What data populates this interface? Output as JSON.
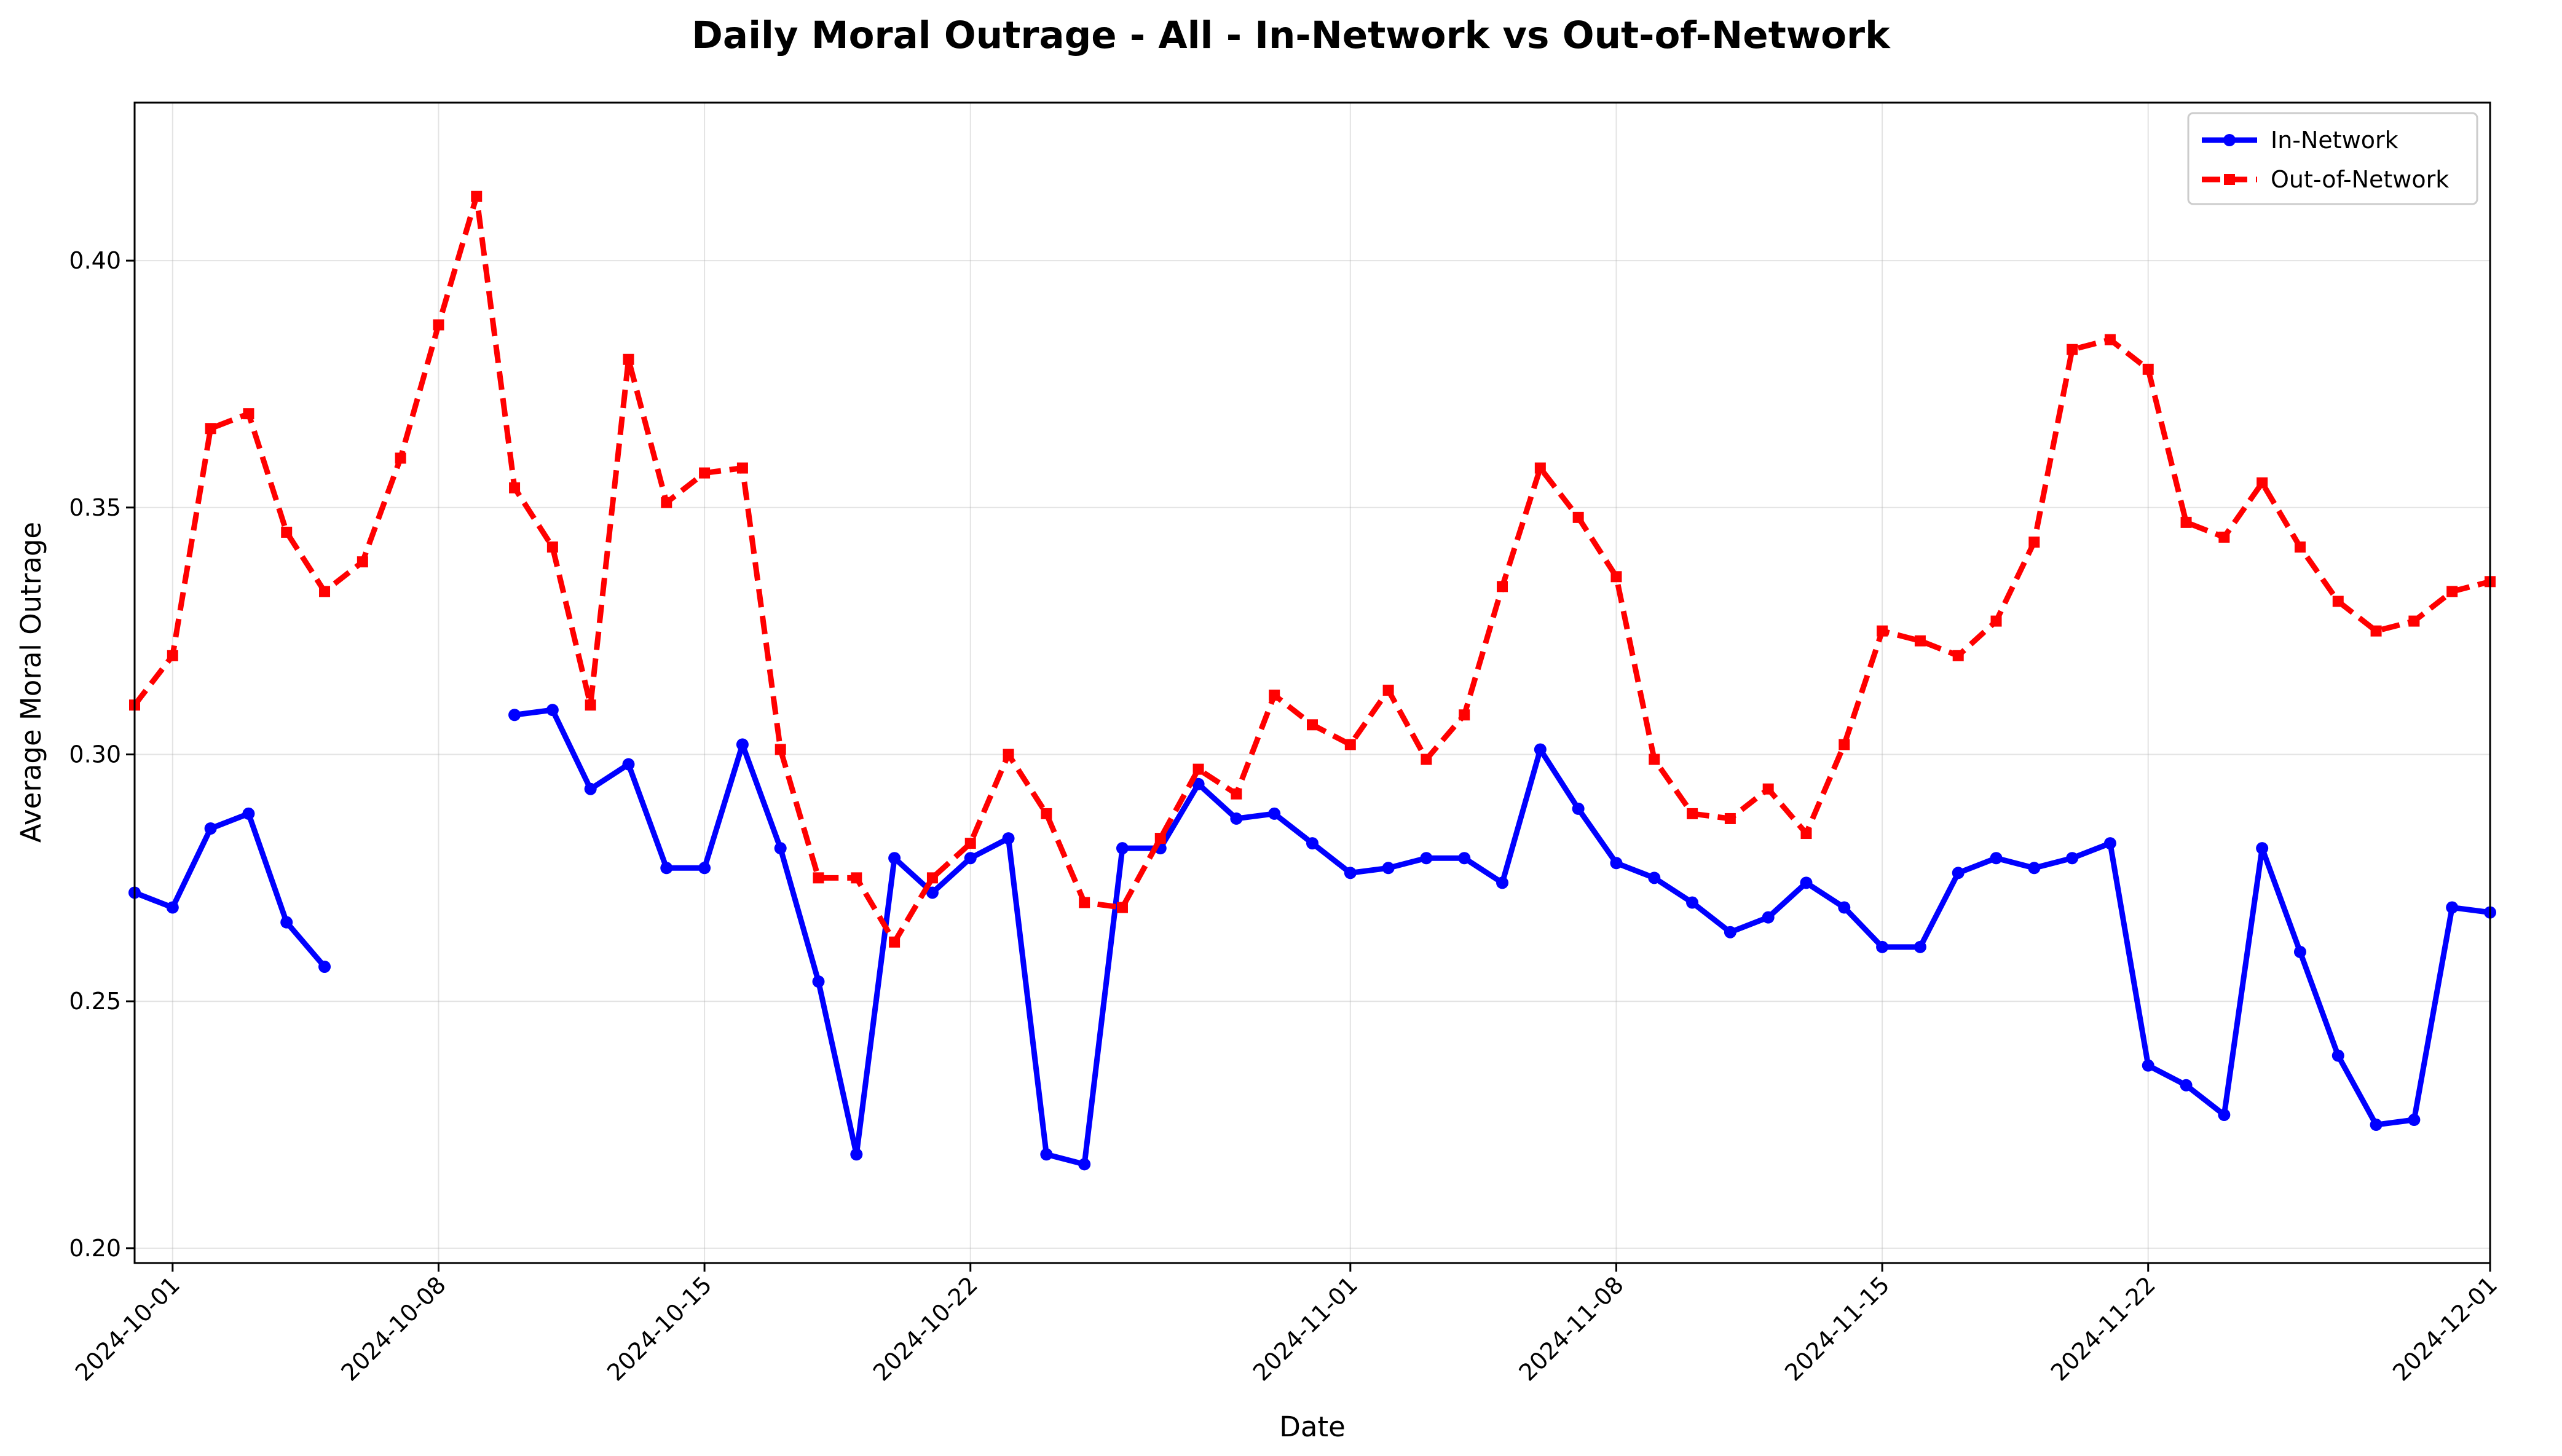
{
  "chart_data": {
    "type": "line",
    "title": "Daily Moral Outrage - All - In-Network vs Out-of-Network",
    "xlabel": "Date",
    "ylabel": "Average Moral Outrage",
    "x_start": "2024-09-30",
    "x_end": "2024-12-01",
    "xlim": [
      "2024-09-30",
      "2024-12-01"
    ],
    "ylim": [
      0.197,
      0.432
    ],
    "xticks": [
      "2024-10-01",
      "2024-10-08",
      "2024-10-15",
      "2024-10-22",
      "2024-11-01",
      "2024-11-08",
      "2024-11-15",
      "2024-11-22",
      "2024-12-01"
    ],
    "yticks": [
      "0.20",
      "0.25",
      "0.30",
      "0.35",
      "0.40"
    ],
    "grid": true,
    "legend_position": "top-right",
    "series": [
      {
        "name": "In-Network",
        "color": "#0000ff",
        "style": "solid",
        "marker": "circle",
        "values": [
          0.272,
          0.269,
          0.285,
          0.288,
          0.266,
          0.257,
          null,
          null,
          null,
          null,
          0.308,
          0.309,
          0.293,
          0.298,
          0.277,
          0.277,
          0.302,
          0.281,
          0.254,
          0.219,
          0.279,
          0.272,
          0.279,
          0.283,
          0.219,
          0.217,
          0.281,
          0.281,
          0.294,
          0.287,
          0.288,
          0.282,
          0.276,
          0.277,
          0.279,
          0.279,
          0.274,
          0.301,
          0.289,
          0.278,
          0.275,
          0.27,
          0.264,
          0.267,
          0.274,
          0.269,
          0.261,
          0.261,
          0.276,
          0.279,
          0.277,
          0.279,
          0.282,
          0.237,
          0.233,
          0.227,
          0.281,
          0.26,
          0.239,
          0.225,
          0.226,
          0.269,
          0.268
        ]
      },
      {
        "name": "Out-of-Network",
        "color": "#ff0000",
        "style": "dashed",
        "marker": "square",
        "values": [
          0.31,
          0.32,
          0.366,
          0.369,
          0.345,
          0.333,
          0.339,
          0.36,
          0.387,
          0.413,
          0.354,
          0.342,
          0.31,
          0.38,
          0.351,
          0.357,
          0.358,
          0.301,
          0.275,
          0.275,
          0.262,
          0.275,
          0.282,
          0.3,
          0.288,
          0.27,
          0.269,
          0.283,
          0.297,
          0.292,
          0.312,
          0.306,
          0.302,
          0.313,
          0.299,
          0.308,
          0.334,
          0.358,
          0.348,
          0.336,
          0.299,
          0.288,
          0.287,
          0.293,
          0.284,
          0.302,
          0.325,
          0.323,
          0.32,
          0.327,
          0.343,
          0.382,
          0.384,
          0.378,
          0.347,
          0.344,
          0.355,
          0.342,
          0.331,
          0.325,
          0.327,
          0.333,
          0.335
        ]
      }
    ]
  }
}
